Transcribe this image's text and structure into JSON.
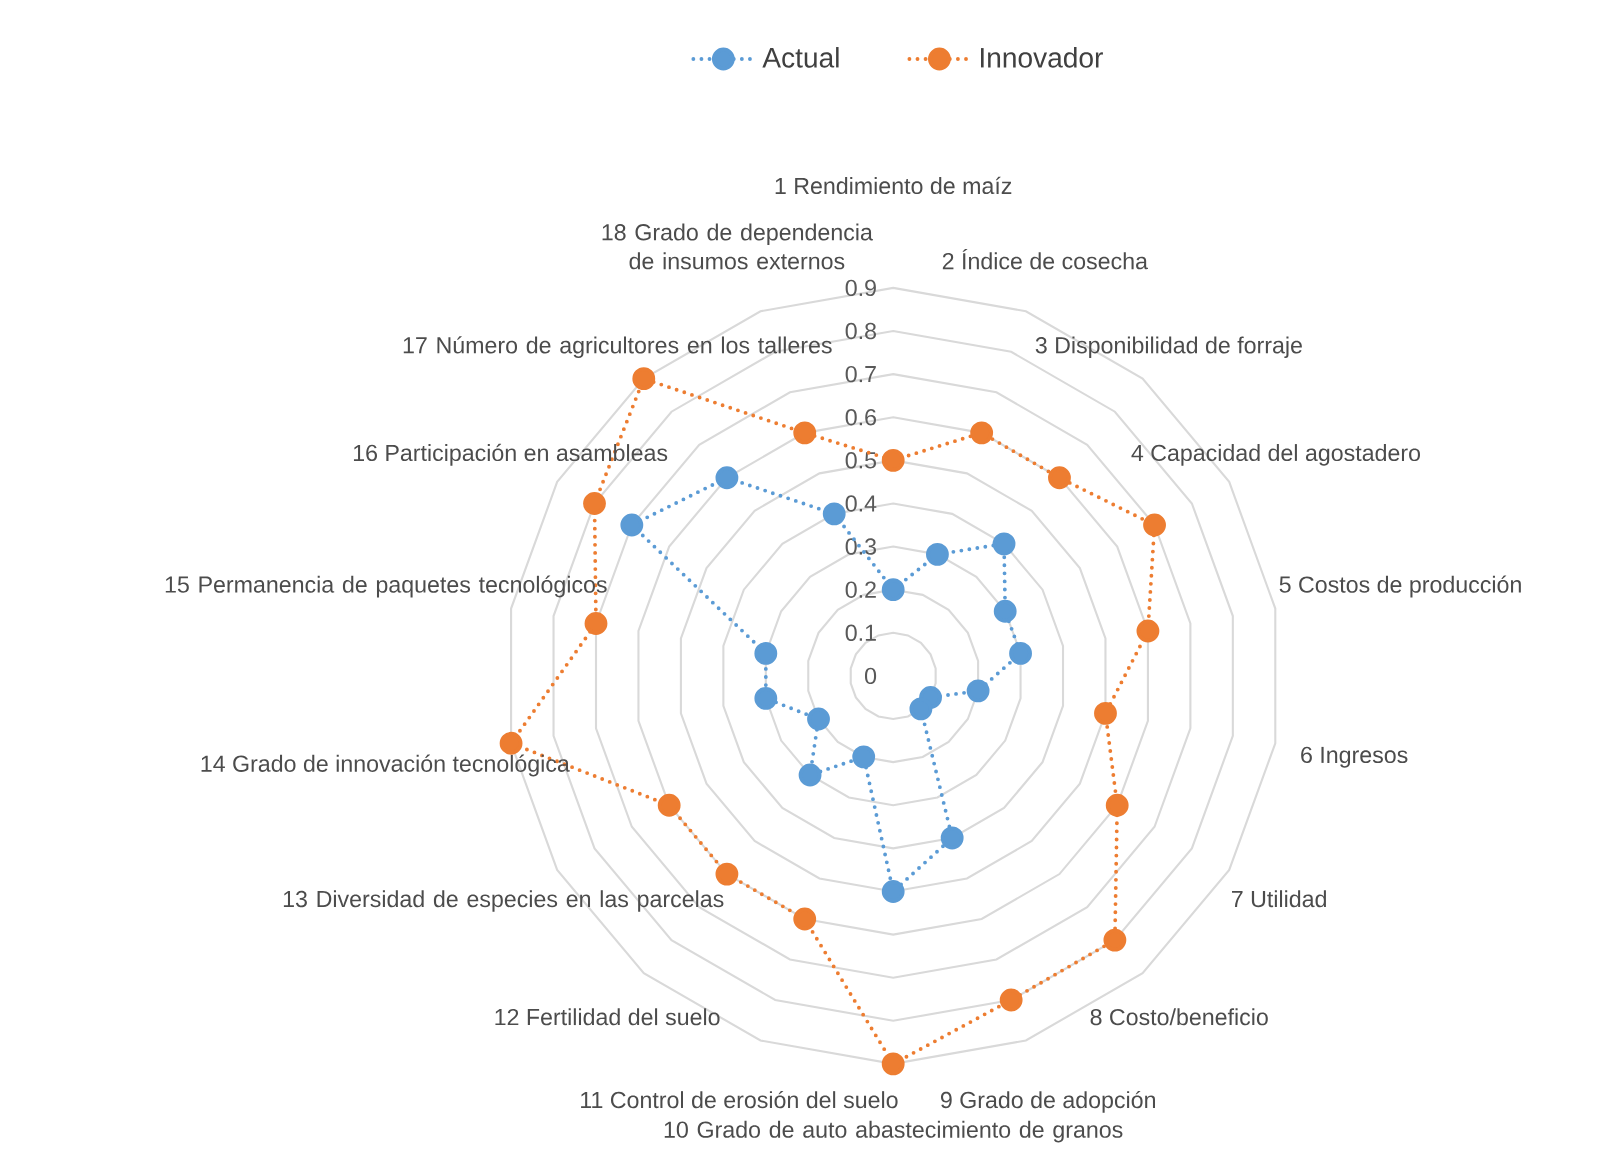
{
  "chart_data": {
    "type": "radar",
    "categories": [
      "1 Rendimiento de maíz",
      "2 Índice de cosecha",
      "3 Disponibilidad de forraje",
      "4 Capacidad del agostadero",
      "5 Costos de producción",
      "6 Ingresos",
      "7 Utilidad",
      "8 Costo/beneficio",
      "9 Grado de adopción",
      "10 Grado de auto abastecimiento de granos",
      "11 Control  de erosión del suelo",
      "12 Fertilidad del suelo",
      "13 Diversidad de especies en las parcelas",
      "14 Grado de innovación tecnológica",
      "15 Permanencia de paquetes tecnológicos",
      "16 Participación en asambleas",
      "17 Número de agricultores en los talleres",
      "18 Grado de dependencia de insumos externos"
    ],
    "series": [
      {
        "name": "Actual",
        "color": "#5b9bd5",
        "values": [
          0.2,
          0.3,
          0.4,
          0.3,
          0.3,
          0.2,
          0.1,
          0.1,
          0.4,
          0.5,
          0.2,
          0.3,
          0.2,
          0.3,
          0.3,
          0.7,
          0.6,
          0.4
        ]
      },
      {
        "name": "Innovador",
        "color": "#ed7d31",
        "values": [
          0.5,
          0.6,
          0.6,
          0.7,
          0.6,
          0.5,
          0.6,
          0.8,
          0.8,
          0.9,
          0.6,
          0.6,
          0.6,
          0.9,
          0.7,
          0.8,
          0.9,
          0.6
        ]
      }
    ],
    "ylim": [
      0,
      0.9
    ],
    "yticks": [
      0,
      0.1,
      0.2,
      0.3,
      0.4,
      0.5,
      0.6,
      0.7,
      0.8,
      0.9
    ],
    "grid": true,
    "legend": "top",
    "marker": "circle",
    "line_style": "dotted"
  }
}
